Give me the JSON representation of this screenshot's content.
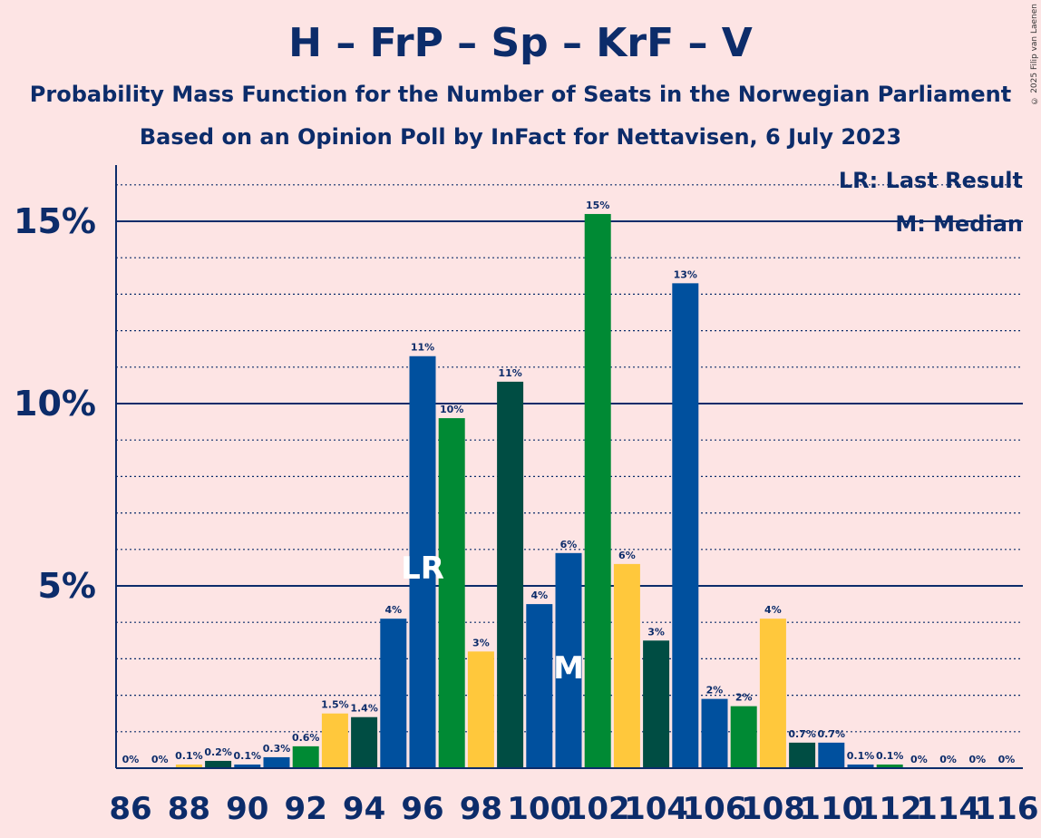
{
  "title": "H – FrP – Sp – KrF – V",
  "subtitle1": "Probability Mass Function for the Number of Seats in the Norwegian Parliament",
  "subtitle2": "Based on an Opinion Poll by InFact for Nettavisen, 6 July 2023",
  "copyright": "© 2025 Filip van Laenen",
  "legend": {
    "lr": "LR: Last Result",
    "m": "M: Median"
  },
  "colors": {
    "blue": "#00509e",
    "green": "#008a34",
    "yellow": "#ffc83c",
    "dark": "#004d43",
    "axis": "#0c2c6a",
    "background": "#fde4e4"
  },
  "chart_data": {
    "type": "bar",
    "title": "H – FrP – Sp – KrF – V",
    "x": [
      86,
      87,
      88,
      89,
      90,
      91,
      92,
      93,
      94,
      95,
      96,
      97,
      98,
      99,
      100,
      101,
      102,
      103,
      104,
      105,
      106,
      107,
      108,
      109,
      110,
      111,
      112,
      113,
      114,
      115,
      116
    ],
    "values": [
      0,
      0,
      0.1,
      0.2,
      0.1,
      0.3,
      0.6,
      1.5,
      1.4,
      4.1,
      11.3,
      9.6,
      3.2,
      10.6,
      4.5,
      5.9,
      15.2,
      5.6,
      3.5,
      13.3,
      1.9,
      1.7,
      4.1,
      0.7,
      0.7,
      0.1,
      0.1,
      0,
      0,
      0,
      0
    ],
    "labels": [
      "0%",
      "0%",
      "0.1%",
      "0.2%",
      "0.1%",
      "0.3%",
      "0.6%",
      "1.5%",
      "1.4%",
      "4%",
      "11%",
      "10%",
      "3%",
      "11%",
      "4%",
      "6%",
      "15%",
      "6%",
      "3%",
      "13%",
      "2%",
      "2%",
      "4%",
      "0.7%",
      "0.7%",
      "0.1%",
      "0.1%",
      "0%",
      "0%",
      "0%",
      "0%"
    ],
    "bar_colors": [
      "blue",
      "green",
      "yellow",
      "dark",
      "blue",
      "blue",
      "green",
      "yellow",
      "dark",
      "blue",
      "blue",
      "green",
      "yellow",
      "dark",
      "blue",
      "blue",
      "green",
      "yellow",
      "dark",
      "blue",
      "blue",
      "green",
      "yellow",
      "dark",
      "blue",
      "blue",
      "green",
      "yellow",
      "dark",
      "blue",
      "blue"
    ],
    "x_tick_labels": [
      "86",
      "88",
      "90",
      "92",
      "94",
      "96",
      "98",
      "100",
      "102",
      "104",
      "106",
      "108",
      "110",
      "112",
      "114",
      "116"
    ],
    "y_tick_labels": [
      "5%",
      "10%",
      "15%"
    ],
    "y_ticks": [
      5,
      10,
      15
    ],
    "ylim": [
      0,
      16.5
    ],
    "last_result": {
      "x": 96,
      "label": "LR"
    },
    "median": {
      "x": 101,
      "label": "M"
    }
  }
}
